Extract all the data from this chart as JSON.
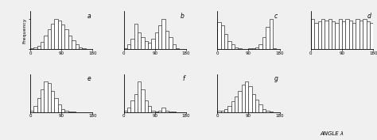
{
  "panels": [
    {
      "label": "a",
      "heights": [
        0.2,
        0.5,
        1.2,
        2.5,
        4.5,
        6.5,
        8.5,
        10.0,
        9.5,
        8.0,
        6.5,
        4.5,
        3.0,
        1.5,
        0.6,
        0.2,
        0.05,
        0.0
      ],
      "row": 0,
      "col": 0
    },
    {
      "label": "b",
      "heights": [
        0.3,
        1.5,
        3.0,
        7.5,
        5.0,
        3.5,
        2.5,
        2.0,
        3.0,
        5.0,
        7.0,
        9.0,
        5.5,
        3.5,
        1.5,
        0.4,
        0.1,
        0.0
      ],
      "row": 0,
      "col": 1
    },
    {
      "label": "c",
      "heights": [
        8.0,
        7.0,
        4.5,
        2.5,
        1.5,
        0.5,
        0.2,
        0.1,
        0.1,
        0.2,
        0.3,
        0.5,
        1.5,
        3.5,
        6.5,
        9.0,
        0.2,
        0.0
      ],
      "row": 0,
      "col": 2
    },
    {
      "label": "d",
      "heights": [
        3.5,
        3.0,
        3.2,
        3.5,
        3.3,
        3.5,
        3.2,
        3.0,
        3.5,
        3.2,
        3.5,
        3.3,
        3.0,
        3.5,
        3.3,
        3.5,
        3.2,
        3.0
      ],
      "row": 0,
      "col": 3
    },
    {
      "label": "e",
      "heights": [
        0.5,
        2.0,
        4.5,
        7.5,
        10.0,
        9.5,
        7.0,
        4.5,
        2.5,
        1.0,
        0.5,
        0.2,
        0.05,
        0.0,
        0.0,
        0.0,
        0.0,
        0.0
      ],
      "row": 1,
      "col": 0
    },
    {
      "label": "f",
      "heights": [
        0.5,
        1.5,
        3.5,
        5.5,
        9.5,
        7.0,
        3.5,
        2.0,
        0.5,
        0.2,
        0.5,
        1.5,
        0.3,
        0.1,
        0.05,
        0.0,
        0.0,
        0.0
      ],
      "row": 1,
      "col": 1
    },
    {
      "label": "g",
      "heights": [
        0.3,
        0.5,
        1.0,
        2.0,
        3.5,
        5.0,
        7.0,
        9.0,
        10.0,
        8.5,
        6.0,
        4.0,
        2.5,
        1.0,
        0.3,
        0.1,
        0.0,
        0.0
      ],
      "row": 1,
      "col": 2
    }
  ],
  "bin_edges": [
    0,
    10,
    20,
    30,
    40,
    50,
    60,
    70,
    80,
    90,
    100,
    110,
    120,
    130,
    140,
    150,
    160,
    170,
    180
  ],
  "xlabel": "ANGLE λ",
  "ylabel": "Frequency",
  "xticks": [
    0,
    90,
    180
  ],
  "bg_color": "#f0f0f0",
  "bar_color": "white",
  "edge_color": "#333333",
  "fig_width": 4.74,
  "fig_height": 1.77,
  "dpi": 100
}
